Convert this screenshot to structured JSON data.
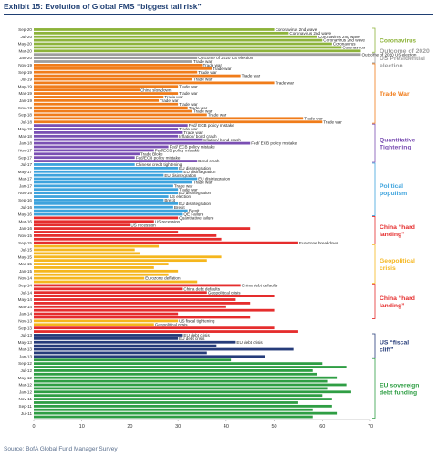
{
  "header": {
    "title": "Exhibit 15: Evolution of Global FMS “biggest tail risk”"
  },
  "footer": {
    "source": "Source: BofA Global Fund Manager Survey"
  },
  "chart_data": {
    "type": "bar",
    "orientation": "horizontal",
    "title": "Exhibit 15: Evolution of Global FMS “biggest tail risk”",
    "xlim": [
      0,
      70
    ],
    "xticks": [
      0,
      10,
      20,
      30,
      40,
      50,
      60,
      70
    ],
    "grid": false,
    "legend": "none",
    "colors": {
      "coronavirus": "#8db33a",
      "election": "#9e9e9e",
      "trade": "#f07c1a",
      "qt": "#7a4fb3",
      "populism": "#3da3dd",
      "china": "#e52d2d",
      "geo": "#f5b61d",
      "fiscal": "#263c7a",
      "eu": "#2f9e44"
    },
    "groups": [
      {
        "label": "Coronavirus",
        "color_key": "coronavirus"
      },
      {
        "label": "Outcome of 2020 US Presidential election",
        "color_key": "election"
      },
      {
        "label": "Trade War",
        "color_key": "trade"
      },
      {
        "label": "Quantitative Tightening",
        "color_key": "qt"
      },
      {
        "label": "Political populism",
        "color_key": "populism"
      },
      {
        "label": "China “hard landing”",
        "color_key": "china"
      },
      {
        "label": "Geopolitical crisis",
        "color_key": "geo"
      },
      {
        "label": "China “hard landing”",
        "color_key": "china"
      },
      {
        "label": "US “fiscal cliff”",
        "color_key": "fiscal"
      },
      {
        "label": "EU sovereign debt funding",
        "color_key": "eu"
      }
    ],
    "rows": [
      {
        "month": "Sep-20",
        "value": 50,
        "color_key": "coronavirus",
        "label": "Coronavirus 2nd wave"
      },
      {
        "month": "",
        "value": 53,
        "color_key": "coronavirus",
        "label": "Coronavirus 2nd wave"
      },
      {
        "month": "Jul-20",
        "value": 59,
        "color_key": "coronavirus",
        "label": "Coronavirus 2nd wave"
      },
      {
        "month": "",
        "value": 60,
        "color_key": "coronavirus",
        "label": "Coronavirus 2nd wave"
      },
      {
        "month": "May-20",
        "value": 62,
        "color_key": "coronavirus",
        "label": "Coronavirus"
      },
      {
        "month": "",
        "value": 64,
        "color_key": "coronavirus",
        "label": "Coronavirus"
      },
      {
        "month": "Mar-20",
        "value": 68,
        "color_key": "coronavirus",
        "label": ""
      },
      {
        "month": "",
        "value": 68,
        "color_key": "election",
        "label": "Outcome of 2020 US election"
      },
      {
        "month": "Jan-20",
        "value": 34,
        "color_key": "election",
        "label": "Outcome of 2020 US election"
      },
      {
        "month": "",
        "value": 33,
        "color_key": "election",
        "label": "Trade war"
      },
      {
        "month": "Nov-19",
        "value": 35,
        "color_key": "trade",
        "label": "Trade war"
      },
      {
        "month": "",
        "value": 37,
        "color_key": "trade",
        "label": "Trade war"
      },
      {
        "month": "Sep-19",
        "value": 34,
        "color_key": "trade",
        "label": "Trade war"
      },
      {
        "month": "",
        "value": 43,
        "color_key": "trade",
        "label": "Trade war"
      },
      {
        "month": "Jul-19",
        "value": 33,
        "color_key": "trade",
        "label": "Trade war"
      },
      {
        "month": "",
        "value": 50,
        "color_key": "trade",
        "label": "Trade war"
      },
      {
        "month": "May-19",
        "value": 30,
        "color_key": "trade",
        "label": "Trade war"
      },
      {
        "month": "",
        "value": 22,
        "color_key": "trade",
        "label": "China slowdown"
      },
      {
        "month": "Mar-19",
        "value": 30,
        "color_key": "trade",
        "label": "Trade war"
      },
      {
        "month": "",
        "value": 27,
        "color_key": "trade",
        "label": "Trade war"
      },
      {
        "month": "Jan-19",
        "value": 26,
        "color_key": "trade",
        "label": "Trade war"
      },
      {
        "month": "",
        "value": 30,
        "color_key": "trade",
        "label": "Trade war"
      },
      {
        "month": "Nov-18",
        "value": 32,
        "color_key": "trade",
        "label": "Trade war"
      },
      {
        "month": "",
        "value": 33,
        "color_key": "trade",
        "label": "Trade war"
      },
      {
        "month": "Sep-18",
        "value": 36,
        "color_key": "trade",
        "label": "Trade war"
      },
      {
        "month": "",
        "value": 56,
        "color_key": "trade",
        "label": "Trade war"
      },
      {
        "month": "Jul-18",
        "value": 60,
        "color_key": "trade",
        "label": "Trade war"
      },
      {
        "month": "",
        "value": 32,
        "color_key": "qt",
        "label": "Fed/ ECB policy mistake"
      },
      {
        "month": "May-18",
        "value": 30,
        "color_key": "qt",
        "label": "Trade war"
      },
      {
        "month": "",
        "value": 31,
        "color_key": "qt",
        "label": "Trade war"
      },
      {
        "month": "Mar-18",
        "value": 30,
        "color_key": "qt",
        "label": "Inflation/ bond crash"
      },
      {
        "month": "",
        "value": 35,
        "color_key": "qt",
        "label": "Inflation/ bond crash"
      },
      {
        "month": "Jan-18",
        "value": 45,
        "color_key": "qt",
        "label": "Fed/ ECB policy mistake"
      },
      {
        "month": "",
        "value": 28,
        "color_key": "qt",
        "label": "Fed/ ECB policy mistake"
      },
      {
        "month": "Nov-17",
        "value": 25,
        "color_key": "qt",
        "label": "Fed/ECB policy mistake"
      },
      {
        "month": "",
        "value": 22,
        "color_key": "qt",
        "label": "Trade Bloke"
      },
      {
        "month": "Sep-17",
        "value": 21,
        "color_key": "qt",
        "label": "Fed/ECB policy mistake"
      },
      {
        "month": "",
        "value": 34,
        "color_key": "qt",
        "label": "Bond crash"
      },
      {
        "month": "Jul-17",
        "value": 21,
        "color_key": "populism",
        "label": "Chinese credit tightening"
      },
      {
        "month": "",
        "value": 30,
        "color_key": "populism",
        "label": "EU disintegration"
      },
      {
        "month": "May-17",
        "value": 31,
        "color_key": "populism",
        "label": "EU disintegration"
      },
      {
        "month": "",
        "value": 27,
        "color_key": "populism",
        "label": "EU disintegration"
      },
      {
        "month": "Mar-17",
        "value": 34,
        "color_key": "populism",
        "label": "EU disintegration"
      },
      {
        "month": "",
        "value": 33,
        "color_key": "populism",
        "label": "Trade war"
      },
      {
        "month": "Jan-17",
        "value": 29,
        "color_key": "populism",
        "label": "Trade war"
      },
      {
        "month": "",
        "value": 30,
        "color_key": "populism",
        "label": "Trade war"
      },
      {
        "month": "Nov-16",
        "value": 30,
        "color_key": "populism",
        "label": "EU disintegration"
      },
      {
        "month": "",
        "value": 28,
        "color_key": "populism",
        "label": "US election"
      },
      {
        "month": "Sep-16",
        "value": 27,
        "color_key": "populism",
        "label": "Brexit"
      },
      {
        "month": "",
        "value": 30,
        "color_key": "populism",
        "label": "EU disintegration"
      },
      {
        "month": "Jul-16",
        "value": 29,
        "color_key": "populism",
        "label": "Brexit"
      },
      {
        "month": "",
        "value": 32,
        "color_key": "populism",
        "label": "Brexit"
      },
      {
        "month": "May-16",
        "value": 31,
        "color_key": "populism",
        "label": "QE Failure"
      },
      {
        "month": "",
        "value": 30,
        "color_key": "china",
        "label": "Quantitative failure"
      },
      {
        "month": "Mar-16",
        "value": 25,
        "color_key": "china",
        "label": "US recession"
      },
      {
        "month": "",
        "value": 20,
        "color_key": "china",
        "label": "US recession"
      },
      {
        "month": "Jan-16",
        "value": 45,
        "color_key": "china",
        "label": ""
      },
      {
        "month": "",
        "value": 30,
        "color_key": "china",
        "label": ""
      },
      {
        "month": "Nov-15",
        "value": 38,
        "color_key": "china",
        "label": ""
      },
      {
        "month": "",
        "value": 39,
        "color_key": "china",
        "label": ""
      },
      {
        "month": "Sep-15",
        "value": 55,
        "color_key": "china",
        "label": "Eurozone breakdown"
      },
      {
        "month": "",
        "value": 26,
        "color_key": "geo",
        "label": ""
      },
      {
        "month": "Jul-15",
        "value": 21,
        "color_key": "geo",
        "label": ""
      },
      {
        "month": "",
        "value": 22,
        "color_key": "geo",
        "label": ""
      },
      {
        "month": "May-15",
        "value": 39,
        "color_key": "geo",
        "label": ""
      },
      {
        "month": "",
        "value": 36,
        "color_key": "geo",
        "label": ""
      },
      {
        "month": "Mar-15",
        "value": 28,
        "color_key": "geo",
        "label": ""
      },
      {
        "month": "",
        "value": 25,
        "color_key": "geo",
        "label": ""
      },
      {
        "month": "Jan-15",
        "value": 30,
        "color_key": "geo",
        "label": ""
      },
      {
        "month": "",
        "value": 28,
        "color_key": "geo",
        "label": ""
      },
      {
        "month": "Nov-14",
        "value": 23,
        "color_key": "geo",
        "label": "Eurozone deflation"
      },
      {
        "month": "",
        "value": 34,
        "color_key": "geo",
        "label": ""
      },
      {
        "month": "Sep-14",
        "value": 43,
        "color_key": "china",
        "label": "China debt defaults"
      },
      {
        "month": "",
        "value": 31,
        "color_key": "china",
        "label": "China debt defaults"
      },
      {
        "month": "Jul-14",
        "value": 36,
        "color_key": "china",
        "label": "Geopolitical crisis"
      },
      {
        "month": "",
        "value": 50,
        "color_key": "china",
        "label": ""
      },
      {
        "month": "May-14",
        "value": 42,
        "color_key": "china",
        "label": ""
      },
      {
        "month": "",
        "value": 45,
        "color_key": "china",
        "label": ""
      },
      {
        "month": "Mar-14",
        "value": 40,
        "color_key": "china",
        "label": ""
      },
      {
        "month": "",
        "value": 50,
        "color_key": "china",
        "label": ""
      },
      {
        "month": "Jan-14",
        "value": 30,
        "color_key": "china",
        "label": ""
      },
      {
        "month": "",
        "value": 45,
        "color_key": "china",
        "label": ""
      },
      {
        "month": "Nov-13",
        "value": 30,
        "color_key": "geo",
        "label": "US fiscal tightening"
      },
      {
        "month": "",
        "value": 25,
        "color_key": "geo",
        "label": "Geopolitical crisis"
      },
      {
        "month": "Sep-13",
        "value": 50,
        "color_key": "china",
        "label": ""
      },
      {
        "month": "",
        "value": 55,
        "color_key": "china",
        "label": ""
      },
      {
        "month": "Jul-13",
        "value": 31,
        "color_key": "fiscal",
        "label": "EU debt crisis"
      },
      {
        "month": "",
        "value": 30,
        "color_key": "fiscal",
        "label": "EU debt crisis"
      },
      {
        "month": "May-13",
        "value": 42,
        "color_key": "fiscal",
        "label": "EU debt crisis"
      },
      {
        "month": "",
        "value": 38,
        "color_key": "fiscal",
        "label": ""
      },
      {
        "month": "Mar-13",
        "value": 54,
        "color_key": "fiscal",
        "label": ""
      },
      {
        "month": "",
        "value": 36,
        "color_key": "fiscal",
        "label": ""
      },
      {
        "month": "Jan-13",
        "value": 48,
        "color_key": "fiscal",
        "label": ""
      },
      {
        "month": "",
        "value": 41,
        "color_key": "eu",
        "label": ""
      },
      {
        "month": "Sep-12",
        "value": 60,
        "color_key": "eu",
        "label": ""
      },
      {
        "month": "",
        "value": 65,
        "color_key": "eu",
        "label": ""
      },
      {
        "month": "Jul-12",
        "value": 58,
        "color_key": "eu",
        "label": ""
      },
      {
        "month": "",
        "value": 59,
        "color_key": "eu",
        "label": ""
      },
      {
        "month": "May-12",
        "value": 63,
        "color_key": "eu",
        "label": ""
      },
      {
        "month": "",
        "value": 61,
        "color_key": "eu",
        "label": ""
      },
      {
        "month": "Mar-12",
        "value": 65,
        "color_key": "eu",
        "label": ""
      },
      {
        "month": "",
        "value": 61,
        "color_key": "eu",
        "label": ""
      },
      {
        "month": "Jan-12",
        "value": 66,
        "color_key": "eu",
        "label": ""
      },
      {
        "month": "",
        "value": 60,
        "color_key": "eu",
        "label": ""
      },
      {
        "month": "Nov-11",
        "value": 62,
        "color_key": "eu",
        "label": ""
      },
      {
        "month": "",
        "value": 55,
        "color_key": "eu",
        "label": ""
      },
      {
        "month": "Sep-11",
        "value": 62,
        "color_key": "eu",
        "label": ""
      },
      {
        "month": "",
        "value": 58,
        "color_key": "eu",
        "label": ""
      },
      {
        "month": "Jul-11",
        "value": 63,
        "color_key": "eu",
        "label": ""
      },
      {
        "month": "",
        "value": 58,
        "color_key": "eu",
        "label": ""
      }
    ]
  }
}
